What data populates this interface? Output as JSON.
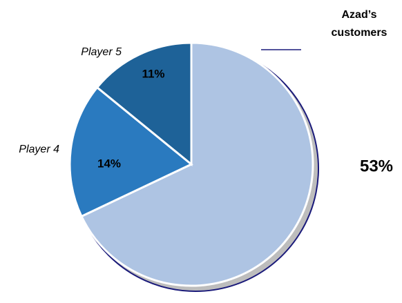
{
  "chart_data": {
    "type": "pie",
    "categories": [
      "Azad’s customers",
      "Player 4",
      "Player 5"
    ],
    "values": [
      53,
      14,
      11
    ],
    "value_labels": [
      "53%",
      "14%",
      "11%"
    ],
    "colors": [
      "#aec4e3",
      "#2a7abf",
      "#1e6298"
    ]
  }
}
